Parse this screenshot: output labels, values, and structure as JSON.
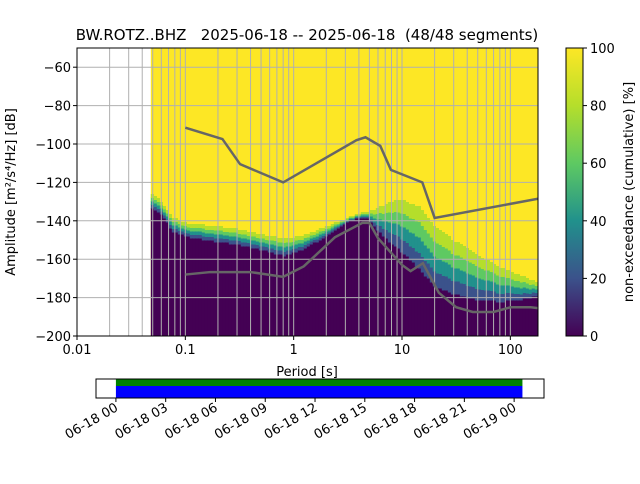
{
  "chart_data": {
    "type": "heatmap",
    "title": "BW.ROTZ..BHZ   2025-06-18 -- 2025-06-18  (48/48 segments)",
    "xlabel": "Period [s]",
    "ylabel": "Amplitude [m²/s⁴/Hz] [dB]",
    "xscale": "log",
    "xlim": [
      0.01,
      180
    ],
    "ylim": [
      -200,
      -50
    ],
    "grid": true,
    "x_ticks": [
      {
        "v": 0.01,
        "label": "0.01"
      },
      {
        "v": 0.1,
        "label": "0.1"
      },
      {
        "v": 1,
        "label": "1"
      },
      {
        "v": 10,
        "label": "10"
      },
      {
        "v": 100,
        "label": "100"
      }
    ],
    "y_ticks": [
      {
        "v": -60,
        "label": "−60"
      },
      {
        "v": -80,
        "label": "−80"
      },
      {
        "v": -100,
        "label": "−100"
      },
      {
        "v": -120,
        "label": "−120"
      },
      {
        "v": -140,
        "label": "−140"
      },
      {
        "v": -160,
        "label": "−160"
      },
      {
        "v": -180,
        "label": "−180"
      },
      {
        "v": -200,
        "label": "−200"
      }
    ],
    "colorbar": {
      "label": "non-exceedance (cumulative) [%]",
      "range": [
        0,
        100
      ],
      "ticks": [
        {
          "v": 0,
          "label": "0"
        },
        {
          "v": 20,
          "label": "20"
        },
        {
          "v": 40,
          "label": "40"
        },
        {
          "v": 60,
          "label": "60"
        },
        {
          "v": 80,
          "label": "80"
        },
        {
          "v": 100,
          "label": "100"
        }
      ],
      "colormap": [
        "#440154",
        "#3b528b",
        "#21918c",
        "#5ec962",
        "#b5de2b",
        "#fde725"
      ]
    },
    "ppsd_envelope": {
      "periods": [
        0.048,
        0.06,
        0.075,
        0.1,
        0.2,
        0.3,
        0.5,
        0.8,
        1.2,
        2,
        3,
        4,
        5,
        6,
        8,
        10,
        15,
        20,
        30,
        50,
        80,
        120,
        180
      ],
      "lowest_db": [
        -133,
        -136,
        -145,
        -148,
        -151,
        -152,
        -155,
        -158,
        -155,
        -148,
        -141,
        -138,
        -139,
        -145,
        -152,
        -156,
        -166,
        -174,
        -178,
        -181,
        -182,
        -181,
        -179
      ],
      "saturated_db": [
        -125,
        -130,
        -138,
        -141,
        -143,
        -144,
        -147,
        -149,
        -148,
        -143,
        -139,
        -136,
        -135,
        -133,
        -130,
        -129,
        -133,
        -143,
        -150,
        -158,
        -164,
        -168,
        -172
      ]
    },
    "noise_models": [
      {
        "name": "NHNM",
        "color": "#666666",
        "periods": [
          0.1,
          0.22,
          0.32,
          0.8,
          3.8,
          4.6,
          6.3,
          7.9,
          15.4,
          20,
          180
        ],
        "db": [
          -91.5,
          -97.4,
          -110.5,
          -120,
          -98,
          -96.5,
          -101,
          -113.5,
          -120,
          -138.5,
          -128.5
        ]
      },
      {
        "name": "NLNM",
        "color": "#666666",
        "periods": [
          0.1,
          0.17,
          0.4,
          0.8,
          1.24,
          2.4,
          4.3,
          5,
          6,
          10,
          12,
          15.6,
          21.9,
          31.6,
          45,
          70,
          101,
          154,
          180
        ],
        "db": [
          -168,
          -166.7,
          -166.7,
          -169.2,
          -163.7,
          -148.6,
          -141.1,
          -141.1,
          -149,
          -163,
          -166.2,
          -162.1,
          -177.5,
          -185,
          -187.5,
          -187.5,
          -185,
          -185,
          -185.5
        ]
      }
    ],
    "timeline": {
      "range_hours": [
        -1.2,
        25.8
      ],
      "coverage_hours": [
        0,
        24.5
      ],
      "coverage_colors": [
        "#008000",
        "#0000ff"
      ],
      "ticks": [
        {
          "v": 0,
          "label": "06-18 00"
        },
        {
          "v": 3,
          "label": "06-18 03"
        },
        {
          "v": 6,
          "label": "06-18 06"
        },
        {
          "v": 9,
          "label": "06-18 09"
        },
        {
          "v": 12,
          "label": "06-18 12"
        },
        {
          "v": 15,
          "label": "06-18 15"
        },
        {
          "v": 18,
          "label": "06-18 18"
        },
        {
          "v": 21,
          "label": "06-18 21"
        },
        {
          "v": 24,
          "label": "06-19 00"
        }
      ]
    }
  }
}
